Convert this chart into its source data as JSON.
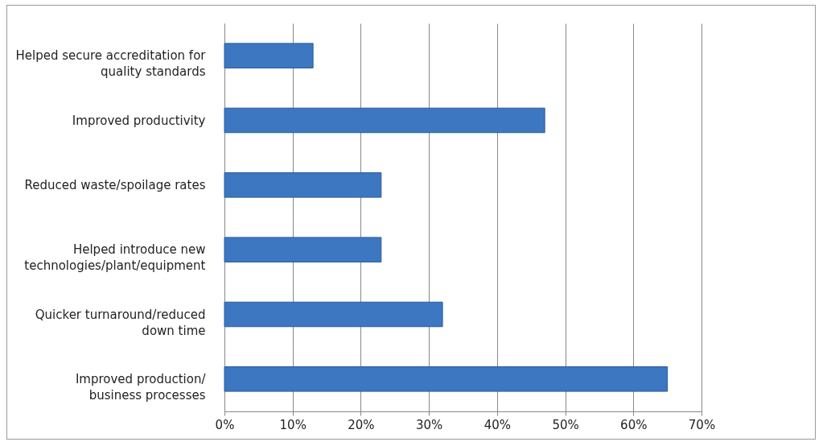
{
  "chart_data": {
    "type": "bar",
    "orientation": "horizontal",
    "categories": [
      "Helped secure accreditation for\nquality standards",
      "Improved productivity",
      "Reduced waste/spoilage rates",
      "Helped introduce new\ntechnologies/plant/equipment",
      "Quicker turnaround/reduced\ndown time",
      "Improved production/\nbusiness processes"
    ],
    "values": [
      13,
      47,
      23,
      23,
      32,
      65
    ],
    "color": "#3d77c2",
    "xlim": [
      0,
      70
    ],
    "xticks": [
      {
        "value": 0,
        "label": "0%"
      },
      {
        "value": 10,
        "label": "10%"
      },
      {
        "value": 20,
        "label": "20%"
      },
      {
        "value": 30,
        "label": "30%"
      },
      {
        "value": 40,
        "label": "40%"
      },
      {
        "value": 50,
        "label": "50%"
      },
      {
        "value": 60,
        "label": "60%"
      },
      {
        "value": 70,
        "label": "70%"
      }
    ],
    "grid": "x"
  }
}
